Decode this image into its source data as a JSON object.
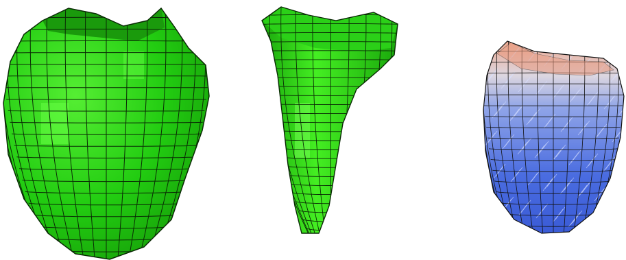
{
  "figure": {
    "panels": [
      {
        "id": "lv-mesh",
        "subject": "left-ventricle-hexahedral-mesh",
        "surface_color": "#22cc11",
        "highlight_color": "#66ff44",
        "edge_color": "#0a2a05"
      },
      {
        "id": "rv-mesh",
        "subject": "right-ventricle-hexahedral-mesh",
        "surface_color": "#22cc11",
        "highlight_color": "#66ff44",
        "edge_color": "#0a2a05"
      },
      {
        "id": "fiber-field",
        "subject": "ventricle-fiber-orientation-wireframe",
        "colormap_low": "#3a5bd6",
        "colormap_high": "#e8a08a",
        "edge_color": "#111111"
      }
    ]
  }
}
